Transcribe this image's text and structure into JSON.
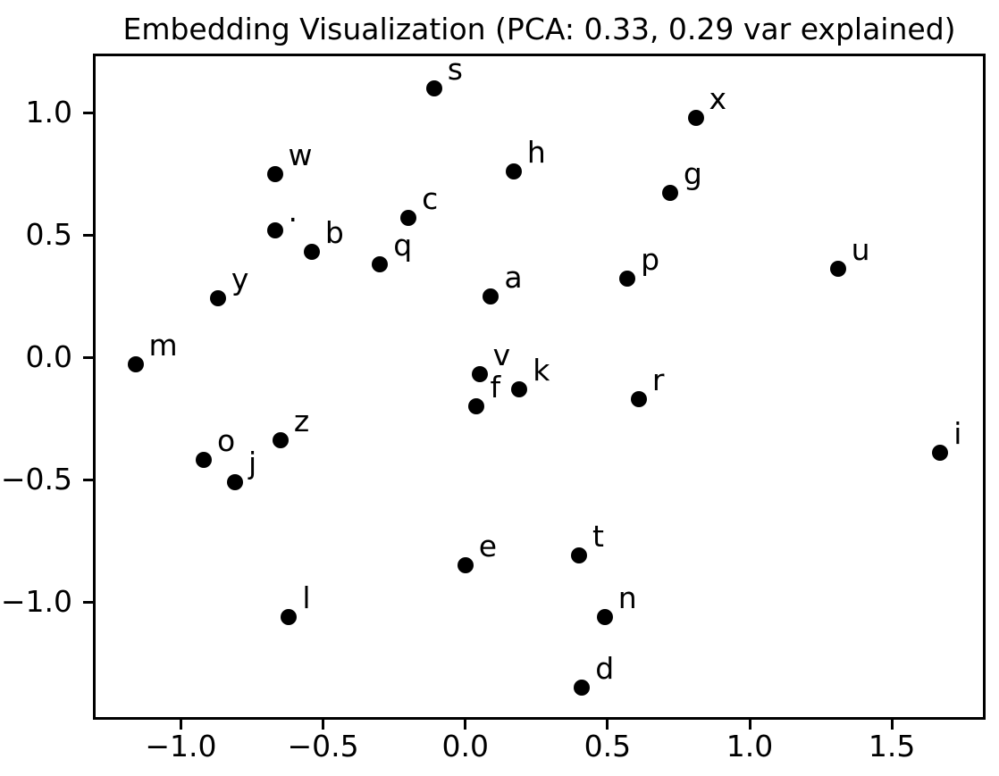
{
  "chart_data": {
    "type": "scatter",
    "title": "Embedding Visualization (PCA: 0.33, 0.29 var explained)",
    "xlabel": "",
    "ylabel": "",
    "xlim": [
      -1.3,
      1.82
    ],
    "ylim": [
      -1.47,
      1.23
    ],
    "grid": false,
    "legend": null,
    "marker_color": "#000000",
    "marker_diameter_px": 18,
    "x_ticks": {
      "values": [
        -1.0,
        -0.5,
        0.0,
        0.5,
        1.0,
        1.5
      ],
      "labels": [
        "−1.0",
        "−0.5",
        "0.0",
        "0.5",
        "1.0",
        "1.5"
      ]
    },
    "y_ticks": {
      "values": [
        1.0,
        0.5,
        0.0,
        -0.5,
        -1.0
      ],
      "labels": [
        "1.0",
        "0.5",
        "0.0",
        "−0.5",
        "−1.0"
      ]
    },
    "points": [
      {
        "label": "a",
        "x": 0.09,
        "y": 0.25
      },
      {
        "label": "b",
        "x": -0.54,
        "y": 0.43
      },
      {
        "label": "c",
        "x": -0.2,
        "y": 0.57
      },
      {
        "label": "d",
        "x": 0.41,
        "y": -1.35
      },
      {
        "label": "e",
        "x": 0.0,
        "y": -0.85
      },
      {
        "label": "f",
        "x": 0.04,
        "y": -0.2
      },
      {
        "label": "g",
        "x": 0.72,
        "y": 0.67
      },
      {
        "label": "h",
        "x": 0.17,
        "y": 0.76
      },
      {
        "label": "i",
        "x": 1.67,
        "y": -0.39
      },
      {
        "label": "j",
        "x": -0.81,
        "y": -0.51
      },
      {
        "label": "k",
        "x": 0.19,
        "y": -0.13
      },
      {
        "label": "l",
        "x": -0.62,
        "y": -1.06
      },
      {
        "label": "m",
        "x": -1.16,
        "y": -0.03
      },
      {
        "label": "n",
        "x": 0.49,
        "y": -1.06
      },
      {
        "label": "o",
        "x": -0.92,
        "y": -0.42
      },
      {
        "label": "p",
        "x": 0.57,
        "y": 0.32
      },
      {
        "label": "q",
        "x": -0.3,
        "y": 0.38
      },
      {
        "label": "r",
        "x": 0.61,
        "y": -0.17
      },
      {
        "label": "s",
        "x": -0.11,
        "y": 1.1
      },
      {
        "label": "t",
        "x": 0.4,
        "y": -0.81
      },
      {
        "label": "u",
        "x": 1.31,
        "y": 0.36
      },
      {
        "label": "v",
        "x": 0.05,
        "y": -0.07
      },
      {
        "label": "w",
        "x": -0.67,
        "y": 0.75
      },
      {
        "label": "x",
        "x": 0.81,
        "y": 0.98
      },
      {
        "label": "y",
        "x": -0.87,
        "y": 0.24
      },
      {
        "label": "z",
        "x": -0.65,
        "y": -0.34
      },
      {
        "label": ".",
        "x": -0.67,
        "y": 0.52
      }
    ]
  }
}
